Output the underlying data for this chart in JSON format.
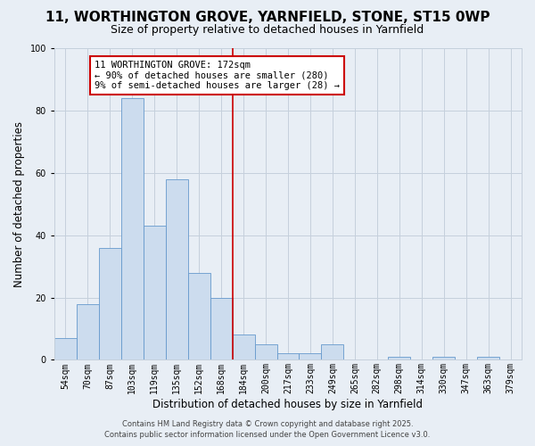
{
  "title": "11, WORTHINGTON GROVE, YARNFIELD, STONE, ST15 0WP",
  "subtitle": "Size of property relative to detached houses in Yarnfield",
  "xlabel": "Distribution of detached houses by size in Yarnfield",
  "ylabel": "Number of detached properties",
  "bar_labels": [
    "54sqm",
    "70sqm",
    "87sqm",
    "103sqm",
    "119sqm",
    "135sqm",
    "152sqm",
    "168sqm",
    "184sqm",
    "200sqm",
    "217sqm",
    "233sqm",
    "249sqm",
    "265sqm",
    "282sqm",
    "298sqm",
    "314sqm",
    "330sqm",
    "347sqm",
    "363sqm",
    "379sqm"
  ],
  "bar_values": [
    7,
    18,
    36,
    84,
    43,
    58,
    28,
    20,
    8,
    5,
    2,
    2,
    5,
    0,
    0,
    1,
    0,
    1,
    0,
    1,
    0
  ],
  "bar_color": "#ccdcee",
  "bar_edge_color": "#6699cc",
  "vline_position": 7.5,
  "vline_color": "#cc0000",
  "ylim": [
    0,
    100
  ],
  "yticks": [
    0,
    20,
    40,
    60,
    80,
    100
  ],
  "annotation_text": "11 WORTHINGTON GROVE: 172sqm\n← 90% of detached houses are smaller (280)\n9% of semi-detached houses are larger (28) →",
  "annotation_box_color": "#ffffff",
  "annotation_box_edge": "#cc0000",
  "background_color": "#e8eef5",
  "plot_bg_color": "#e8eef5",
  "grid_color": "#c5d0dc",
  "footer_line1": "Contains HM Land Registry data © Crown copyright and database right 2025.",
  "footer_line2": "Contains public sector information licensed under the Open Government Licence v3.0.",
  "title_fontsize": 11,
  "subtitle_fontsize": 9,
  "axis_label_fontsize": 8.5,
  "tick_fontsize": 7,
  "annotation_fontsize": 7.5,
  "footer_fontsize": 6
}
